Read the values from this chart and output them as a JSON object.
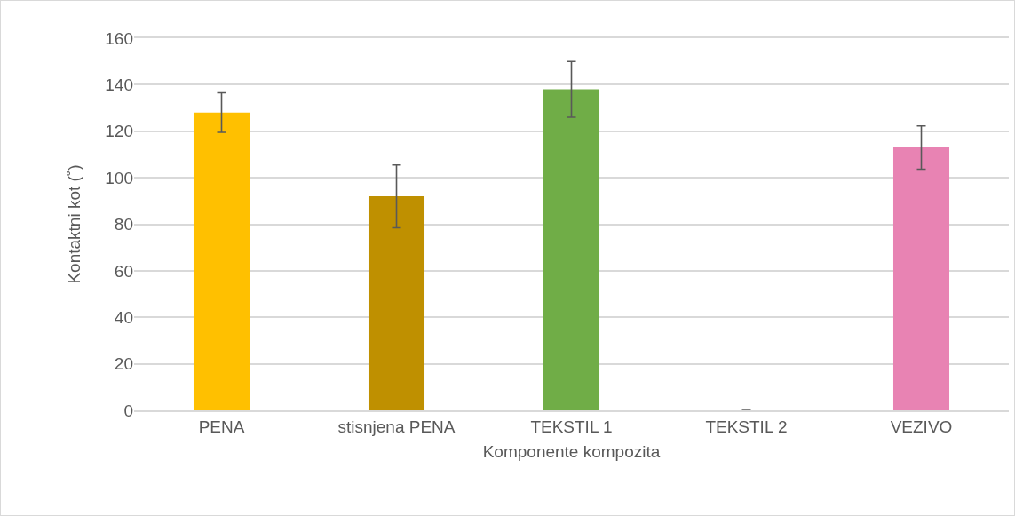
{
  "chart_data": {
    "type": "bar",
    "xlabel": "Komponente kompozita",
    "ylabel": "Kontaktni kot (˚)",
    "categories": [
      "PENA",
      "stisnjena PENA",
      "TEKSTIL 1",
      "TEKSTIL 2",
      "VEZIVO"
    ],
    "values": [
      128,
      92,
      138,
      0,
      113
    ],
    "errors": [
      8.5,
      13.5,
      12,
      null,
      9.3
    ],
    "colors": [
      "#ffc000",
      "#bf9000",
      "#70ad47",
      "#a5a5a5",
      "#e883b3"
    ],
    "ylim": [
      0,
      160
    ],
    "yticks": [
      0,
      20,
      40,
      60,
      80,
      100,
      120,
      140,
      160
    ],
    "grid": "y"
  }
}
